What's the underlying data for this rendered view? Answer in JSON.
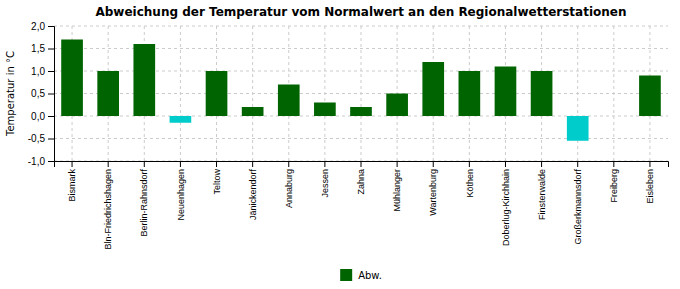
{
  "chart_data": {
    "type": "bar",
    "title": "Abweichung der Temperatur vom Normalwert an den Regionalwetterstationen",
    "y_label": "Temperatur in °C",
    "categories": [
      "Bismark",
      "Bln-Friedrichshagen",
      "Berlin-Rahnsdorf",
      "Neuenhagen",
      "Teltow",
      "Jänickendorf",
      "Annaburg",
      "Jessen",
      "Zahna",
      "Mühlanger",
      "Wartenburg",
      "Köthen",
      "Doberlug-Kirchhain",
      "Finsterwalde",
      "Großerkmannsdorf",
      "Freiberg",
      "Eisleben"
    ],
    "series": [
      {
        "name": "Abw.",
        "color": "#006400",
        "values": [
          1.7,
          1.0,
          1.6,
          -0.15,
          1.0,
          0.2,
          0.7,
          0.3,
          0.2,
          0.5,
          1.2,
          1.0,
          1.1,
          1.0,
          -0.55,
          0.0,
          0.9
        ],
        "colors": [
          "#006400",
          "#006400",
          "#006400",
          "#00CCCC",
          "#006400",
          "#006400",
          "#006400",
          "#006400",
          "#006400",
          "#006400",
          "#006400",
          "#006400",
          "#006400",
          "#006400",
          "#00CCCC",
          "#006400",
          "#006400"
        ]
      }
    ],
    "ylim": [
      -1.0,
      2.0
    ],
    "yticks": [
      {
        "value": -1.0,
        "label": "-1,0"
      },
      {
        "value": -0.5,
        "label": "-0,5"
      },
      {
        "value": 0.0,
        "label": "0,0"
      },
      {
        "value": 0.5,
        "label": "0,5"
      },
      {
        "value": 1.0,
        "label": "1,0"
      },
      {
        "value": 1.5,
        "label": "1,5"
      },
      {
        "value": 2.0,
        "label": "2,0"
      }
    ],
    "grid": true,
    "legend": "bottom"
  }
}
